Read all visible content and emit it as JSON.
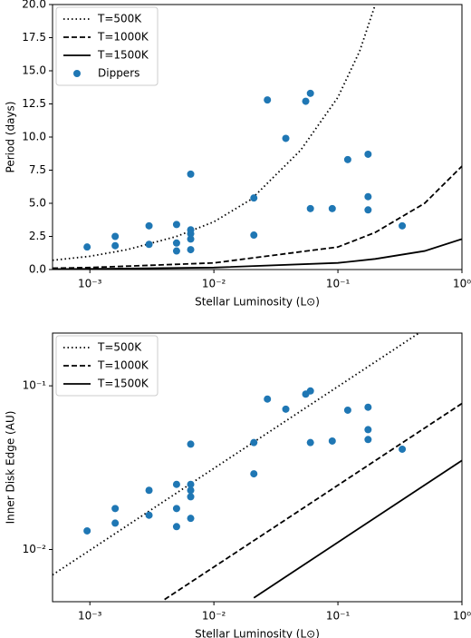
{
  "chart_data": [
    {
      "type": "line",
      "xlabel": "Stellar Luminosity (L⊙)",
      "ylabel": "Period (days)",
      "xscale": "log",
      "yscale": "linear",
      "grid": false,
      "legend": "upper left",
      "xlim": [
        0.0005,
        1
      ],
      "ylim": [
        0,
        20
      ],
      "xticks": [
        {
          "value": 0.001,
          "label": "10⁻³"
        },
        {
          "value": 0.01,
          "label": "10⁻²"
        },
        {
          "value": 0.1,
          "label": "10⁻¹"
        },
        {
          "value": 1,
          "label": "10⁰"
        }
      ],
      "yticks": [
        {
          "value": 0,
          "label": "0.0"
        },
        2.5,
        {
          "value": 5,
          "label": "5.0"
        },
        7.5,
        {
          "value": 10,
          "label": "10.0"
        },
        12.5,
        {
          "value": 15,
          "label": "15.0"
        },
        17.5,
        {
          "value": 20,
          "label": "20.0"
        }
      ],
      "series": [
        {
          "name": "T=500K",
          "type": "line",
          "linestyle": "dotted",
          "color": "#000000",
          "x": [
            0.0005,
            0.001,
            0.002,
            0.005,
            0.01,
            0.02,
            0.05,
            0.1,
            0.15,
            0.2
          ],
          "values": [
            0.7,
            1.0,
            1.5,
            2.5,
            3.6,
            5.3,
            9,
            13,
            16.5,
            20
          ]
        },
        {
          "name": "T=1000K",
          "type": "line",
          "linestyle": "dashed",
          "color": "#000000",
          "x": [
            0.0005,
            0.001,
            0.01,
            0.1,
            0.2,
            0.5,
            1
          ],
          "values": [
            0.1,
            0.15,
            0.5,
            1.7,
            2.8,
            5,
            7.8
          ]
        },
        {
          "name": "T=1500K",
          "type": "line",
          "linestyle": "solid",
          "color": "#000000",
          "x": [
            0.0005,
            0.001,
            0.01,
            0.1,
            0.2,
            0.5,
            1
          ],
          "values": [
            0.03,
            0.05,
            0.15,
            0.5,
            0.8,
            1.4,
            2.3
          ]
        },
        {
          "name": "Dippers",
          "type": "scatter",
          "color": "#1f77b4",
          "x": [
            0.00095,
            0.0016,
            0.0016,
            0.003,
            0.003,
            0.005,
            0.005,
            0.005,
            0.0065,
            0.0065,
            0.0065,
            0.0065,
            0.0065,
            0.021,
            0.021,
            0.027,
            0.038,
            0.055,
            0.06,
            0.06,
            0.09,
            0.12,
            0.175,
            0.175,
            0.175,
            0.33
          ],
          "values": [
            1.7,
            2.5,
            1.8,
            3.3,
            1.9,
            3.4,
            2.0,
            1.4,
            7.2,
            3.0,
            2.7,
            2.3,
            1.5,
            5.4,
            2.6,
            12.8,
            9.9,
            12.7,
            13.3,
            4.6,
            4.6,
            8.3,
            8.7,
            5.5,
            4.5,
            3.3
          ]
        }
      ]
    },
    {
      "type": "line",
      "xlabel": "Stellar Luminosity (L⊙)",
      "ylabel": "Inner Disk Edge (AU)",
      "xscale": "log",
      "yscale": "log",
      "grid": false,
      "legend": "upper left",
      "xlim": [
        0.0005,
        1
      ],
      "ylim": [
        0.0048,
        0.21
      ],
      "xticks": [
        {
          "value": 0.001,
          "label": "10⁻³"
        },
        {
          "value": 0.01,
          "label": "10⁻²"
        },
        {
          "value": 0.1,
          "label": "10⁻¹"
        },
        {
          "value": 1,
          "label": "10⁰"
        }
      ],
      "yticks": [
        {
          "value": 0.01,
          "label": "10⁻²"
        },
        {
          "value": 0.1,
          "label": "10⁻¹"
        }
      ],
      "series": [
        {
          "name": "T=500K",
          "type": "line",
          "linestyle": "dotted",
          "color": "#000000",
          "x": [
            0.0005,
            0.45
          ],
          "values": [
            0.007,
            0.21
          ]
        },
        {
          "name": "T=1000K",
          "type": "line",
          "linestyle": "dashed",
          "color": "#000000",
          "x": [
            0.004,
            1
          ],
          "values": [
            0.00495,
            0.078
          ]
        },
        {
          "name": "T=1500K",
          "type": "line",
          "linestyle": "solid",
          "color": "#000000",
          "x": [
            0.021,
            1
          ],
          "values": [
            0.00507,
            0.035
          ]
        },
        {
          "name": "Dippers",
          "type": "scatter",
          "color": "#1f77b4",
          "in_legend": false,
          "x": [
            0.00095,
            0.0016,
            0.0016,
            0.003,
            0.003,
            0.005,
            0.005,
            0.005,
            0.0065,
            0.0065,
            0.0065,
            0.0065,
            0.0065,
            0.021,
            0.021,
            0.027,
            0.038,
            0.055,
            0.06,
            0.06,
            0.09,
            0.12,
            0.175,
            0.175,
            0.175,
            0.33
          ],
          "values": [
            0.013,
            0.0178,
            0.0145,
            0.023,
            0.0162,
            0.025,
            0.0178,
            0.0138,
            0.044,
            0.025,
            0.023,
            0.021,
            0.0155,
            0.045,
            0.029,
            0.083,
            0.072,
            0.089,
            0.093,
            0.045,
            0.046,
            0.071,
            0.074,
            0.054,
            0.047,
            0.041
          ]
        }
      ]
    }
  ]
}
